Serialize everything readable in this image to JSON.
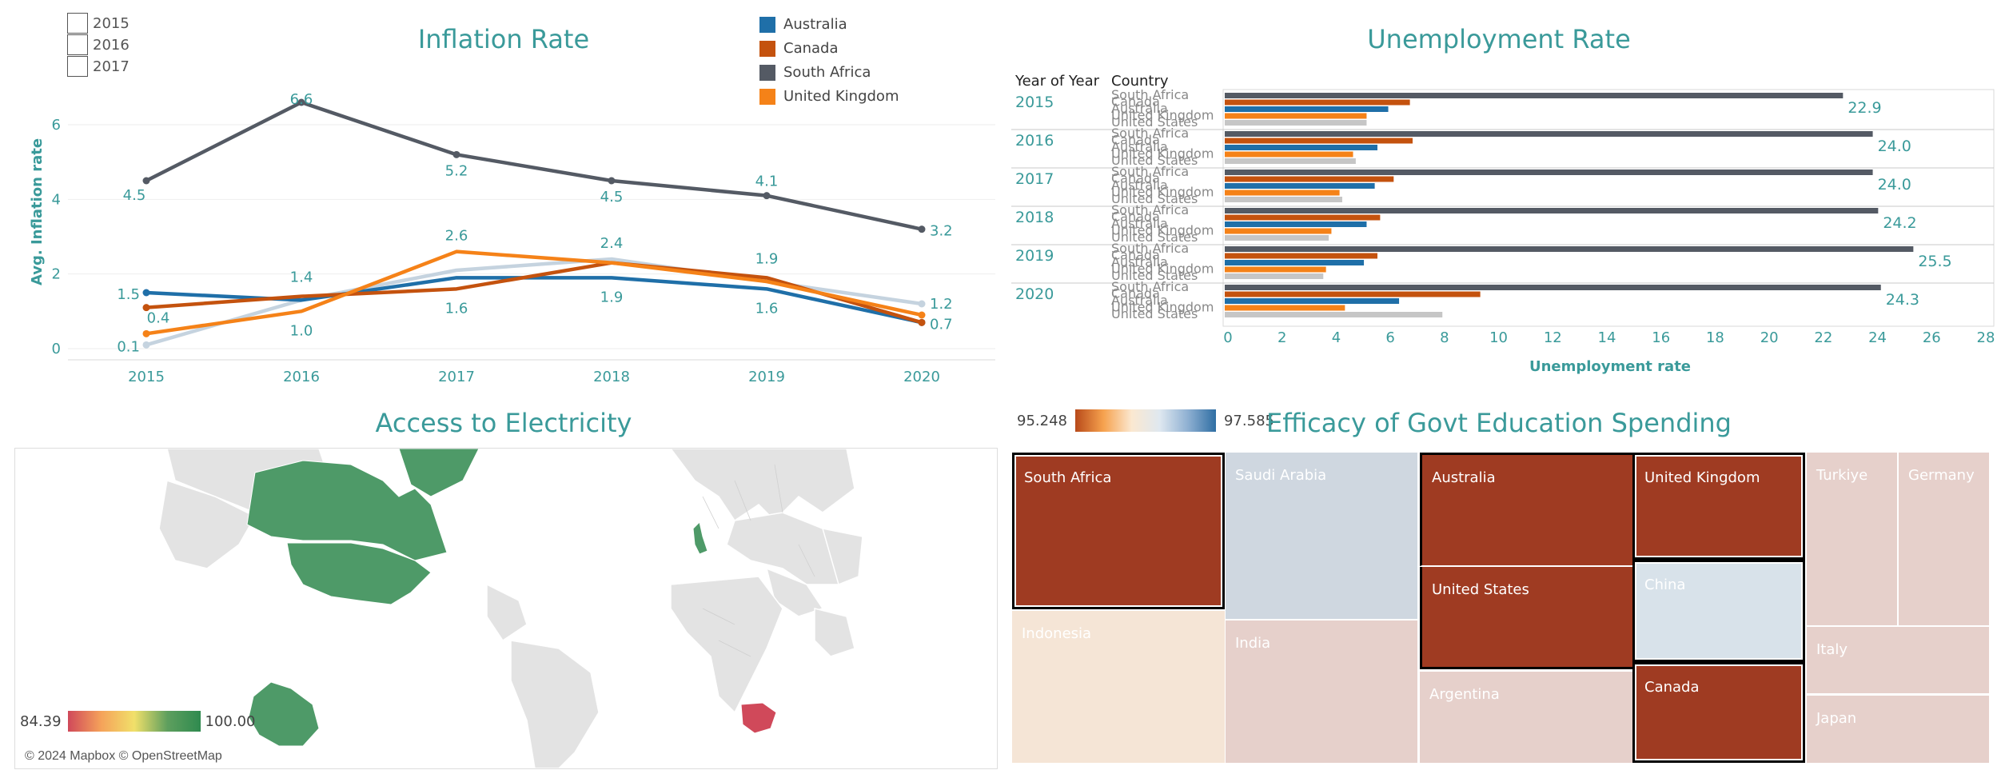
{
  "inflation": {
    "title": "Inflation Rate",
    "ylabel": "Avg. Inflation rate",
    "year_filter": [
      "2015",
      "2016",
      "2017"
    ],
    "legend": [
      {
        "name": "Australia",
        "color": "#1f6fa8"
      },
      {
        "name": "Canada",
        "color": "#c4520e"
      },
      {
        "name": "South Africa",
        "color": "#545a64"
      },
      {
        "name": "United Kingdom",
        "color": "#f58218"
      }
    ]
  },
  "unemployment": {
    "title": "Unemployment Rate",
    "col_year": "Year of Year",
    "col_country": "Country",
    "xlabel": "Unemployment rate"
  },
  "electricity": {
    "title": "Access to Electricity",
    "legend_min": "84.39",
    "legend_max": "100.00",
    "attribution": "© 2024 Mapbox © OpenStreetMap",
    "highlighted": [
      {
        "name": "Canada",
        "color": "#4e9a68"
      },
      {
        "name": "United States",
        "color": "#4e9a68"
      },
      {
        "name": "Greenland",
        "color": "#4e9a68"
      },
      {
        "name": "United Kingdom",
        "color": "#4e9a68"
      },
      {
        "name": "Australia",
        "color": "#4e9a68"
      },
      {
        "name": "South Africa",
        "color": "#d0495a"
      }
    ]
  },
  "education": {
    "title": "Efficacy of Govt Education Spending",
    "legend_min": "95.248",
    "legend_max": "97.585",
    "cells": [
      {
        "name": "South Africa",
        "color": "#9f3b22",
        "text_color": "#ffffff",
        "highlighted": true
      },
      {
        "name": "Saudi Arabia",
        "color": "#cfd7e0",
        "text_color": "#ffffff",
        "highlighted": false
      },
      {
        "name": "Australia",
        "color": "#9f3b22",
        "text_color": "#ffffff",
        "highlighted": true
      },
      {
        "name": "United Kingdom",
        "color": "#9f3b22",
        "text_color": "#ffffff",
        "highlighted": true
      },
      {
        "name": "Turkiye",
        "color": "#e6d0cb",
        "text_color": "#ffffff",
        "highlighted": false
      },
      {
        "name": "Germany",
        "color": "#e6d0cb",
        "text_color": "#ffffff",
        "highlighted": false
      },
      {
        "name": "United States",
        "color": "#9f3b22",
        "text_color": "#ffffff",
        "highlighted": true
      },
      {
        "name": "China",
        "color": "#d8e2ea",
        "text_color": "#ffffff",
        "highlighted": true
      },
      {
        "name": "Indonesia",
        "color": "#f5e5d6",
        "text_color": "#ffffff",
        "highlighted": false
      },
      {
        "name": "India",
        "color": "#e6d0cb",
        "text_color": "#ffffff",
        "highlighted": false
      },
      {
        "name": "Italy",
        "color": "#e6d0cb",
        "text_color": "#ffffff",
        "highlighted": false
      },
      {
        "name": "Argentina",
        "color": "#e6d0cb",
        "text_color": "#ffffff",
        "highlighted": false
      },
      {
        "name": "Canada",
        "color": "#9f3b22",
        "text_color": "#ffffff",
        "highlighted": true
      },
      {
        "name": "Japan",
        "color": "#e6d0cb",
        "text_color": "#ffffff",
        "highlighted": false
      }
    ]
  },
  "chart_data": [
    {
      "type": "line",
      "title": "Inflation Rate",
      "ylabel": "Avg. Inflation rate",
      "xlabel": "",
      "x": [
        "2015",
        "2016",
        "2017",
        "2018",
        "2019",
        "2020"
      ],
      "ylim": [
        -0.3,
        7.2
      ],
      "yticks": [
        0,
        2,
        4,
        6
      ],
      "series": [
        {
          "name": "South Africa",
          "color": "#545a64",
          "values": [
            4.5,
            6.6,
            5.2,
            4.5,
            4.1,
            3.2
          ],
          "labels": [
            "4.5",
            "6.6",
            "5.2",
            "4.5",
            "4.1",
            "3.2"
          ]
        },
        {
          "name": "Australia",
          "color": "#1f6fa8",
          "values": [
            1.5,
            1.3,
            1.9,
            1.9,
            1.6,
            0.7
          ],
          "labels": [
            "1.5",
            "",
            "",
            "1.9",
            "1.6",
            ""
          ]
        },
        {
          "name": "Canada",
          "color": "#c4520e",
          "values": [
            1.1,
            1.4,
            1.6,
            2.3,
            1.9,
            0.7
          ],
          "labels": [
            "",
            "1.4",
            "1.6",
            "",
            "1.9",
            "0.7"
          ]
        },
        {
          "name": "United Kingdom",
          "color": "#f58218",
          "values": [
            0.4,
            1.0,
            2.6,
            2.3,
            1.8,
            0.9
          ],
          "labels": [
            "0.4",
            "1.0",
            "2.6",
            "",
            "",
            ""
          ]
        },
        {
          "name": "",
          "color": "#c5d3df",
          "values": [
            0.1,
            1.3,
            2.1,
            2.4,
            1.8,
            1.2
          ],
          "labels": [
            "0.1",
            "",
            "",
            "2.4",
            "",
            "1.2"
          ]
        }
      ]
    },
    {
      "type": "bar",
      "title": "Unemployment Rate",
      "xlabel": "Unemployment rate",
      "xlim": [
        0,
        28
      ],
      "xticks": [
        0,
        2,
        4,
        6,
        8,
        10,
        12,
        14,
        16,
        18,
        20,
        22,
        24,
        26,
        28
      ],
      "countries": [
        {
          "name": "South Africa",
          "color": "#545a64"
        },
        {
          "name": "Canada",
          "color": "#c4520e"
        },
        {
          "name": "Australia",
          "color": "#1f6fa8"
        },
        {
          "name": "United Kingdom",
          "color": "#f58218"
        },
        {
          "name": "United States",
          "color": "#c6c6c6"
        }
      ],
      "groups": [
        {
          "year": "2015",
          "values": [
            22.9,
            6.9,
            6.1,
            5.3,
            5.3
          ],
          "label": "22.9"
        },
        {
          "year": "2016",
          "values": [
            24.0,
            7.0,
            5.7,
            4.8,
            4.9
          ],
          "label": "24.0"
        },
        {
          "year": "2017",
          "values": [
            24.0,
            6.3,
            5.6,
            4.3,
            4.4
          ],
          "label": "24.0"
        },
        {
          "year": "2018",
          "values": [
            24.2,
            5.8,
            5.3,
            4.0,
            3.9
          ],
          "label": "24.2"
        },
        {
          "year": "2019",
          "values": [
            25.5,
            5.7,
            5.2,
            3.8,
            3.7
          ],
          "label": "25.5"
        },
        {
          "year": "2020",
          "values": [
            24.3,
            9.5,
            6.5,
            4.5,
            8.1
          ],
          "label": "24.3"
        }
      ]
    }
  ]
}
